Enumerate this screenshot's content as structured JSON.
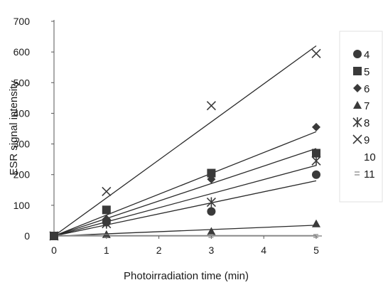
{
  "chart_data": {
    "type": "scatter",
    "xlabel": "Photoirradiation time (min)",
    "ylabel": "ESR signal intensity",
    "xlim": [
      0,
      5
    ],
    "ylim": [
      0,
      700
    ],
    "x_ticks": [
      "0",
      "1",
      "2",
      "3",
      "4",
      "5"
    ],
    "y_ticks": [
      "0",
      "100",
      "200",
      "300",
      "400",
      "500",
      "600",
      "700"
    ],
    "x": [
      0,
      1,
      3,
      5
    ],
    "grid": false,
    "legend_position": "right",
    "trendlines": "linear fit through origin for each series",
    "series": [
      {
        "name": "4",
        "marker": "circle",
        "values": [
          0,
          45,
          80,
          200
        ],
        "fit_slope": 36
      },
      {
        "name": "5",
        "marker": "square",
        "values": [
          0,
          85,
          205,
          270
        ],
        "fit_slope": 57
      },
      {
        "name": "6",
        "marker": "diamond",
        "values": [
          0,
          55,
          185,
          355
        ],
        "fit_slope": 68
      },
      {
        "name": "7",
        "marker": "triangle",
        "values": [
          0,
          5,
          15,
          40
        ],
        "fit_slope": 7
      },
      {
        "name": "8",
        "marker": "asterisk",
        "values": [
          0,
          40,
          110,
          245
        ],
        "fit_slope": 46
      },
      {
        "name": "9",
        "marker": "cross",
        "values": [
          0,
          145,
          425,
          595
        ],
        "fit_slope": 124
      },
      {
        "name": "10",
        "marker": "none",
        "values": [
          0,
          0,
          0,
          0
        ],
        "fit_slope": 0
      },
      {
        "name": "11",
        "marker": "dash",
        "values": [
          0,
          0,
          0,
          0
        ],
        "fit_slope": 0
      }
    ]
  }
}
